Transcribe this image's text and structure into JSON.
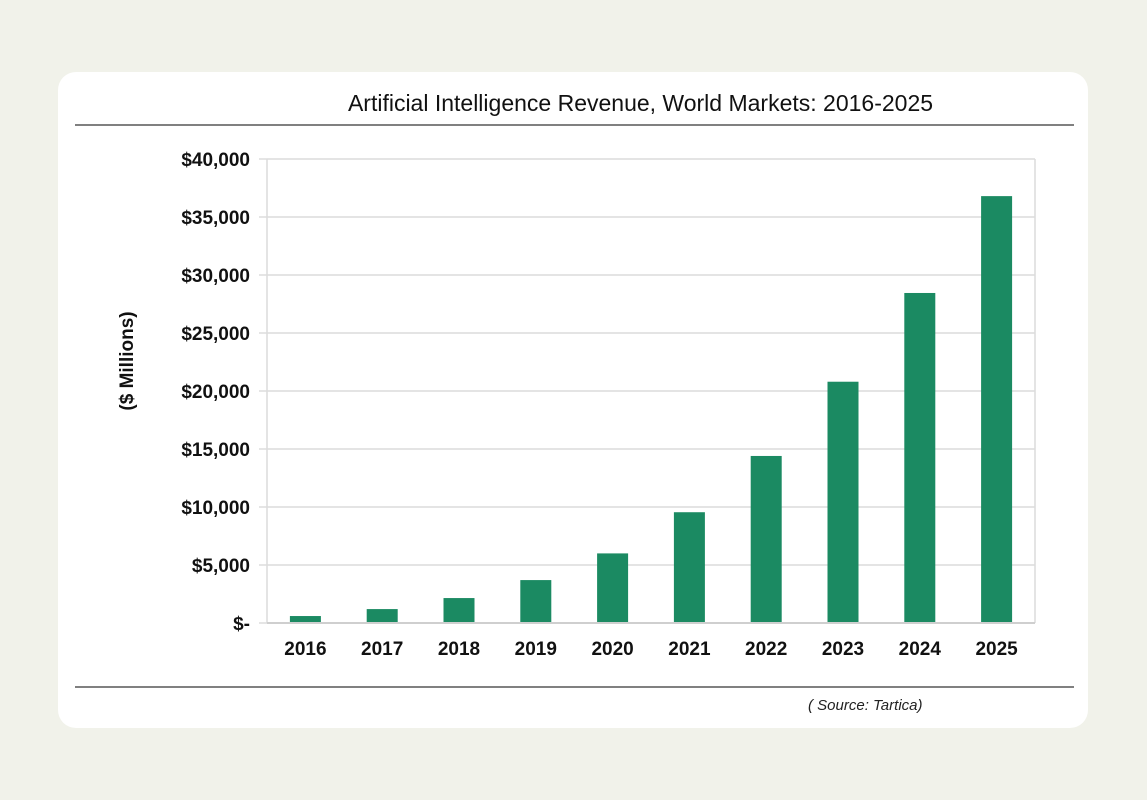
{
  "chart_data": {
    "type": "bar",
    "title": "Artificial Intelligence Revenue, World Markets: 2016-2025",
    "xlabel": "",
    "ylabel": "($ Millions)",
    "categories": [
      "2016",
      "2017",
      "2018",
      "2019",
      "2020",
      "2021",
      "2022",
      "2023",
      "2024",
      "2025"
    ],
    "values": [
      600,
      1200,
      2150,
      3700,
      6000,
      9550,
      14400,
      20800,
      28450,
      36800
    ],
    "ylim": [
      0,
      40000
    ],
    "yticks": [
      0,
      5000,
      10000,
      15000,
      20000,
      25000,
      30000,
      35000,
      40000
    ],
    "ytick_labels": [
      "$-",
      "$5,000",
      "$10,000",
      "$15,000",
      "$20,000",
      "$25,000",
      "$30,000",
      "$35,000",
      "$40,000"
    ],
    "grid": true,
    "bar_color": "#1b8a62",
    "source": "( Source: Tartica)"
  }
}
